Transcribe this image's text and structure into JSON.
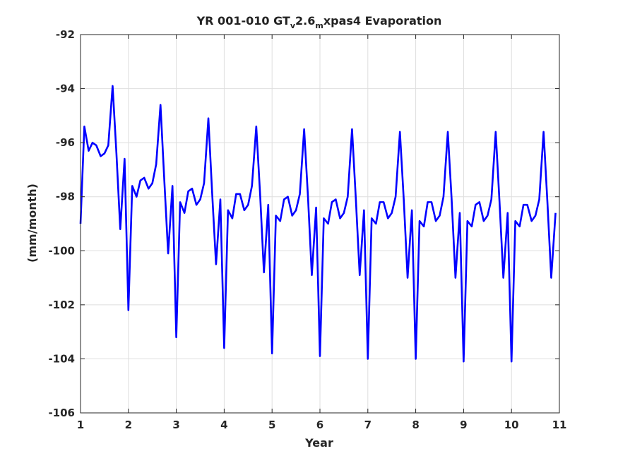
{
  "chart_data": {
    "type": "line",
    "title": {
      "prefix": "YR 001-010 GT",
      "sub1": "v",
      "mid": "2.6",
      "sub2": "m",
      "suffix": "xpas4 Evaporation"
    },
    "xlabel": "Year",
    "ylabel": "(mm/month)",
    "xlim": [
      1,
      11
    ],
    "ylim": [
      -106,
      -92
    ],
    "xticks": [
      "1",
      "2",
      "3",
      "4",
      "5",
      "6",
      "7",
      "8",
      "9",
      "10",
      "11"
    ],
    "yticks": [
      "-92",
      "-94",
      "-96",
      "-98",
      "-100",
      "-102",
      "-104",
      "-106"
    ],
    "grid": true,
    "series": [
      {
        "color": "#0000ff",
        "x": [
          1.0,
          1.08,
          1.17,
          1.25,
          1.33,
          1.42,
          1.5,
          1.58,
          1.67,
          1.75,
          1.83,
          1.92,
          2.0,
          2.08,
          2.17,
          2.25,
          2.33,
          2.42,
          2.5,
          2.58,
          2.67,
          2.75,
          2.83,
          2.92,
          3.0,
          3.08,
          3.17,
          3.25,
          3.33,
          3.42,
          3.5,
          3.58,
          3.67,
          3.75,
          3.83,
          3.92,
          4.0,
          4.08,
          4.17,
          4.25,
          4.33,
          4.42,
          4.5,
          4.58,
          4.67,
          4.75,
          4.83,
          4.92,
          5.0,
          5.08,
          5.17,
          5.25,
          5.33,
          5.42,
          5.5,
          5.58,
          5.67,
          5.75,
          5.83,
          5.92,
          6.0,
          6.08,
          6.17,
          6.25,
          6.33,
          6.42,
          6.5,
          6.58,
          6.67,
          6.75,
          6.83,
          6.92,
          7.0,
          7.08,
          7.17,
          7.25,
          7.33,
          7.42,
          7.5,
          7.58,
          7.67,
          7.75,
          7.83,
          7.92,
          8.0,
          8.08,
          8.17,
          8.25,
          8.33,
          8.42,
          8.5,
          8.58,
          8.67,
          8.75,
          8.83,
          8.92,
          9.0,
          9.08,
          9.17,
          9.25,
          9.33,
          9.42,
          9.5,
          9.58,
          9.67,
          9.75,
          9.83,
          9.92,
          10.0,
          10.08,
          10.17,
          10.25,
          10.33,
          10.42,
          10.5,
          10.58,
          10.67,
          10.75,
          10.83,
          10.92
        ],
        "y": [
          -99.0,
          -95.4,
          -96.3,
          -96.0,
          -96.1,
          -96.5,
          -96.4,
          -96.1,
          -93.9,
          -96.4,
          -99.2,
          -96.6,
          -102.2,
          -97.6,
          -98.0,
          -97.4,
          -97.3,
          -97.7,
          -97.5,
          -96.8,
          -94.6,
          -97.4,
          -100.1,
          -97.6,
          -103.2,
          -98.2,
          -98.6,
          -97.8,
          -97.7,
          -98.3,
          -98.1,
          -97.5,
          -95.1,
          -97.9,
          -100.5,
          -98.1,
          -103.6,
          -98.5,
          -98.8,
          -97.9,
          -97.9,
          -98.5,
          -98.3,
          -97.6,
          -95.4,
          -97.9,
          -100.8,
          -98.3,
          -103.8,
          -98.7,
          -98.9,
          -98.1,
          -98.0,
          -98.7,
          -98.5,
          -97.9,
          -95.5,
          -98.0,
          -100.9,
          -98.4,
          -103.9,
          -98.8,
          -99.0,
          -98.2,
          -98.1,
          -98.8,
          -98.6,
          -98.0,
          -95.5,
          -98.1,
          -100.9,
          -98.5,
          -104.0,
          -98.8,
          -99.0,
          -98.2,
          -98.2,
          -98.8,
          -98.6,
          -98.0,
          -95.6,
          -98.1,
          -101.0,
          -98.5,
          -104.0,
          -98.9,
          -99.1,
          -98.2,
          -98.2,
          -98.9,
          -98.7,
          -98.0,
          -95.6,
          -98.1,
          -101.0,
          -98.6,
          -104.1,
          -98.9,
          -99.1,
          -98.3,
          -98.2,
          -98.9,
          -98.7,
          -98.1,
          -95.6,
          -98.2,
          -101.0,
          -98.6,
          -104.1,
          -98.9,
          -99.1,
          -98.3,
          -98.3,
          -98.9,
          -98.7,
          -98.1,
          -95.6,
          -98.2,
          -101.0,
          -98.6
        ]
      }
    ]
  }
}
